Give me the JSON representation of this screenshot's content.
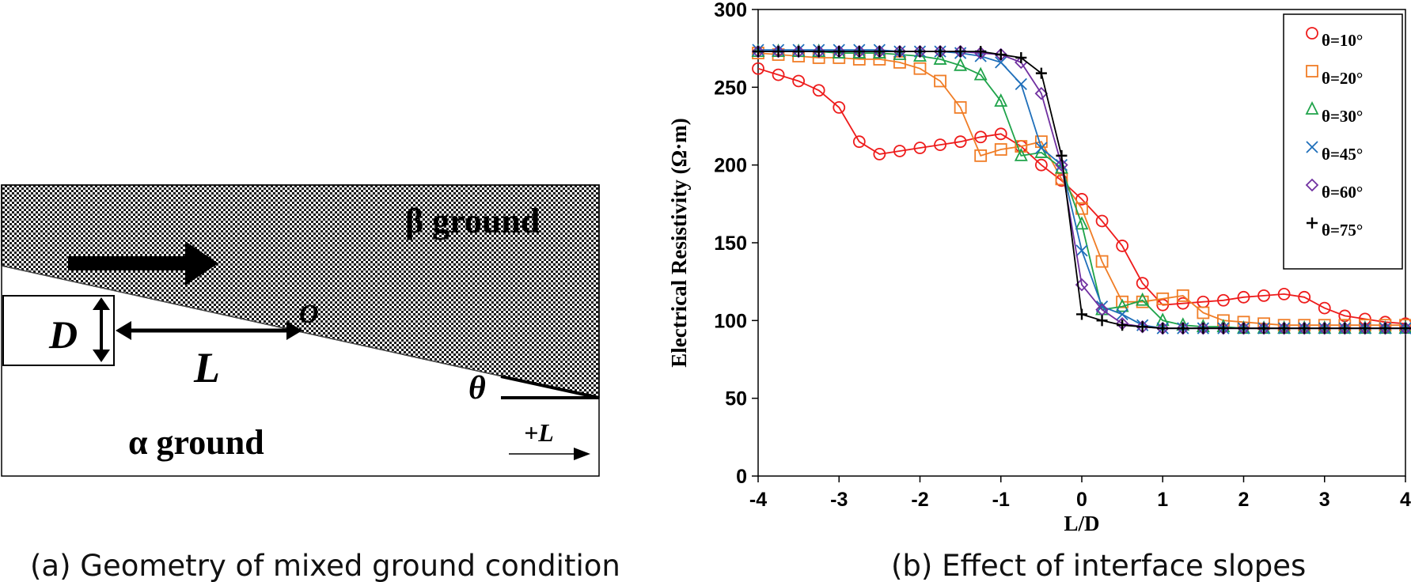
{
  "panel_a": {
    "beta_label": "β ground",
    "alpha_label": "α ground",
    "D_label": "D",
    "L_label": "L",
    "O_label": "O",
    "theta_label": "θ",
    "plusL_label": "+L",
    "caption": "(a) Geometry of mixed ground condition"
  },
  "panel_b": {
    "caption": "(b) Effect of interface slopes"
  },
  "chart_data": {
    "type": "line",
    "xlabel": "L/D",
    "ylabel": "Electrical Resistivity (Ω·m)",
    "xlim": [
      -4,
      4
    ],
    "ylim": [
      0,
      300
    ],
    "xticks": [
      "-4",
      "-3",
      "-2",
      "-1",
      "0",
      "1",
      "2",
      "3",
      "4"
    ],
    "yticks": [
      "0",
      "50",
      "100",
      "150",
      "200",
      "250",
      "300"
    ],
    "legend_position": "top-right",
    "grid": false,
    "x": [
      -4,
      -3.75,
      -3.5,
      -3.25,
      -3,
      -2.75,
      -2.5,
      -2.25,
      -2,
      -1.75,
      -1.5,
      -1.25,
      -1,
      -0.75,
      -0.5,
      -0.25,
      0,
      0.25,
      0.5,
      0.75,
      1,
      1.25,
      1.5,
      1.75,
      2,
      2.25,
      2.5,
      2.75,
      3,
      3.25,
      3.5,
      3.75,
      4
    ],
    "series": [
      {
        "name": "θ=10°",
        "color": "#ee1c1c",
        "marker": "circle",
        "values": [
          262,
          258,
          254,
          248,
          237,
          215,
          207,
          209,
          211,
          213,
          215,
          218,
          220,
          212,
          200,
          190,
          178,
          164,
          148,
          124,
          110,
          111,
          112,
          113,
          115,
          116,
          117,
          115,
          108,
          103,
          101,
          99,
          98
        ]
      },
      {
        "name": "θ=20°",
        "color": "#f07d26",
        "marker": "square",
        "values": [
          272,
          271,
          270,
          269,
          269,
          268,
          268,
          266,
          262,
          254,
          237,
          206,
          210,
          212,
          215,
          191,
          172,
          138,
          112,
          112,
          114,
          116,
          105,
          100,
          99,
          98,
          97,
          97,
          97,
          97,
          97,
          97,
          97
        ]
      },
      {
        "name": "θ=30°",
        "color": "#1fa34a",
        "marker": "triangle",
        "values": [
          273,
          273,
          273,
          273,
          272,
          272,
          272,
          271,
          270,
          268,
          264,
          258,
          241,
          206,
          208,
          198,
          162,
          107,
          109,
          113,
          100,
          97,
          96,
          96,
          95,
          95,
          95,
          95,
          95,
          95,
          95,
          95,
          95
        ]
      },
      {
        "name": "θ=45°",
        "color": "#1f6fba",
        "marker": "x",
        "values": [
          274,
          274,
          274,
          274,
          274,
          274,
          274,
          273,
          273,
          273,
          272,
          270,
          266,
          252,
          211,
          200,
          145,
          109,
          104,
          97,
          95,
          95,
          95,
          95,
          95,
          95,
          95,
          95,
          95,
          95,
          95,
          95,
          95
        ]
      },
      {
        "name": "θ=60°",
        "color": "#7030a0",
        "marker": "diamond",
        "values": [
          273,
          273,
          273,
          273,
          273,
          273,
          273,
          273,
          273,
          273,
          273,
          272,
          271,
          266,
          246,
          200,
          123,
          107,
          98,
          96,
          95,
          95,
          95,
          95,
          95,
          95,
          95,
          95,
          95,
          95,
          95,
          95,
          95
        ]
      },
      {
        "name": "θ=75°",
        "color": "#000000",
        "marker": "plus",
        "values": [
          273,
          273,
          273,
          273,
          273,
          273,
          273,
          273,
          273,
          273,
          273,
          273,
          271,
          269,
          259,
          206,
          104,
          100,
          97,
          96,
          95,
          95,
          95,
          95,
          95,
          95,
          95,
          95,
          95,
          95,
          95,
          95,
          95
        ]
      }
    ]
  }
}
